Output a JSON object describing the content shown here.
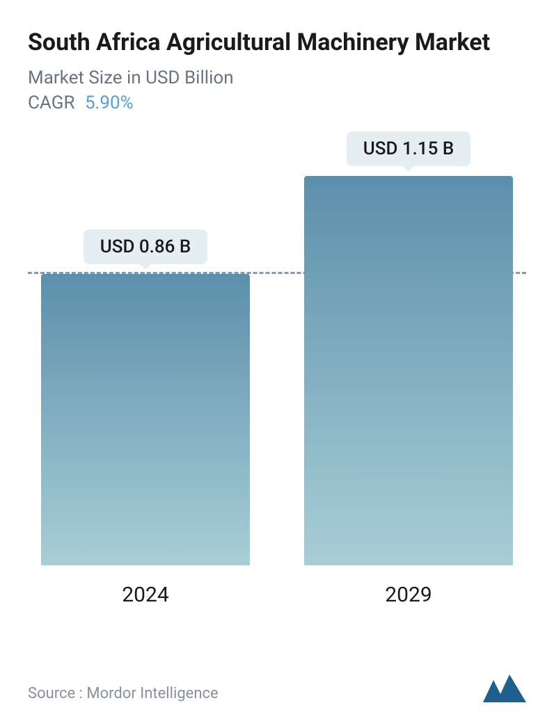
{
  "header": {
    "title": "South Africa Agricultural Machinery Market",
    "subtitle": "Market Size in USD Billion",
    "cagr_label": "CAGR",
    "cagr_value": "5.90%"
  },
  "chart": {
    "type": "bar",
    "categories": [
      "2024",
      "2029"
    ],
    "values": [
      0.86,
      1.15
    ],
    "value_labels": [
      "USD 0.86 B",
      "USD 1.15 B"
    ],
    "y_max": 1.15,
    "reference_line_value": 0.86,
    "bar_gradient_top": "#5c8fab",
    "bar_gradient_bottom": "#a8ced6",
    "dashed_line_color": "#7a9db5",
    "pill_bg": "#e5eef3",
    "title_color": "#1a1a1a",
    "subtitle_color": "#6b7280",
    "cagr_value_color": "#5a9fd4",
    "label_fontsize": 30,
    "value_fontsize": 26,
    "background_color": "#ffffff"
  },
  "footer": {
    "source": "Source :  Mordor Intelligence",
    "logo_name": "mordor-logo",
    "logo_fill": "#1e5f8e"
  }
}
